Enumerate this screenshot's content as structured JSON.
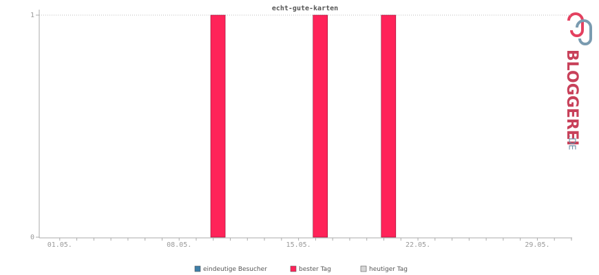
{
  "chart_data": {
    "type": "bar",
    "title": "echt-gute-karten",
    "categories": [
      "01.05.",
      null,
      null,
      null,
      null,
      null,
      null,
      "08.05.",
      null,
      null,
      null,
      null,
      null,
      null,
      "15.05.",
      null,
      null,
      null,
      null,
      null,
      null,
      "22.05.",
      null,
      null,
      null,
      null,
      null,
      null,
      "29.05.",
      null,
      null
    ],
    "series": [
      {
        "name": "eindeutige Besucher",
        "color": "#3e7fa8",
        "values": [
          0,
          0,
          0,
          0,
          0,
          0,
          0,
          0,
          0,
          0,
          0,
          0,
          0,
          0,
          0,
          0,
          0,
          0,
          0,
          0,
          0,
          0,
          0,
          0,
          0,
          0,
          0,
          0,
          0,
          0,
          0
        ]
      },
      {
        "name": "bester Tag",
        "color": "#ff2359",
        "values": [
          null,
          null,
          null,
          null,
          null,
          null,
          null,
          null,
          null,
          1,
          null,
          null,
          null,
          null,
          null,
          1,
          null,
          null,
          null,
          1,
          null,
          null,
          null,
          null,
          null,
          null,
          null,
          null,
          null,
          null,
          null
        ]
      },
      {
        "name": "heutiger Tag",
        "color": "#d6d6d6",
        "values": [
          null,
          null,
          null,
          null,
          null,
          null,
          null,
          null,
          null,
          null,
          null,
          null,
          null,
          null,
          null,
          null,
          null,
          null,
          null,
          null,
          null,
          null,
          null,
          null,
          null,
          null,
          null,
          null,
          null,
          null,
          null
        ]
      }
    ],
    "ylim": [
      0,
      1
    ],
    "yticks": [
      0,
      1
    ],
    "grid": true
  },
  "logo": {
    "name": "BLOGGEREI",
    "suffix": ".DE"
  }
}
